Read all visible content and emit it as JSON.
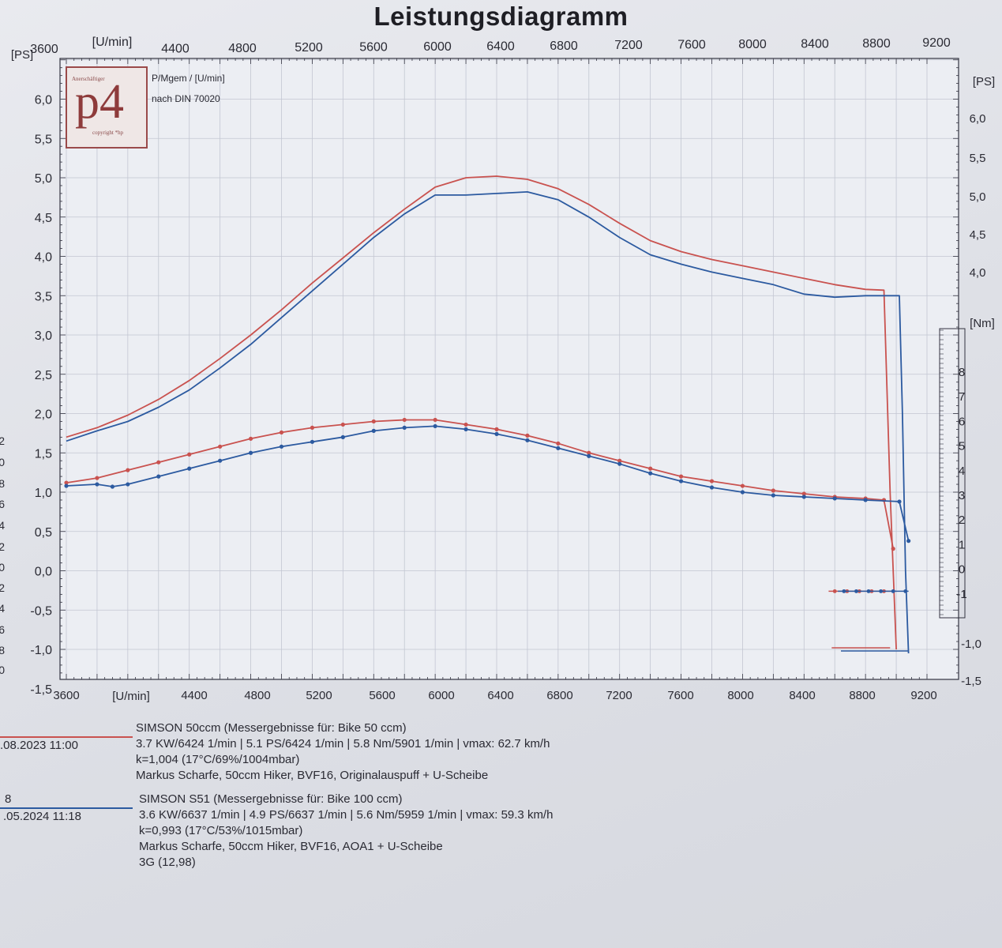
{
  "header": {
    "title": "Leistungsdiagramm"
  },
  "logo": {
    "letters": "p4",
    "top_small": "Anerschäftiger",
    "bottom_small": "copyright *hp"
  },
  "chart_note": {
    "line1": "P/Mgem / [U/min]",
    "line2": "nach DIN 70020"
  },
  "colors": {
    "run1": "#c9524f",
    "run2": "#2c5aa0",
    "grid": "#c3c6d2",
    "axis": "#333340"
  },
  "chart_data": {
    "type": "line",
    "x_unit_label": "[U/min]",
    "x_ticks": [
      "3600",
      "4400",
      "4800",
      "5200",
      "5600",
      "6000",
      "6400",
      "6800",
      "7200",
      "7600",
      "8000",
      "8400",
      "8800",
      "9200"
    ],
    "xlim": [
      3600,
      9200
    ],
    "left_axis": {
      "unit": "[PS]",
      "ticks": [
        "6,0",
        "5,5",
        "5,0",
        "4,5",
        "4,0",
        "3,5",
        "3,0",
        "2,5",
        "2,0",
        "1,5",
        "1,0",
        "0,5",
        "0,0",
        "-0,5",
        "-1,0",
        "-1,5"
      ],
      "ylim": [
        -1.5,
        6.5
      ]
    },
    "right_ps_axis": {
      "unit": "[PS]",
      "ticks": [
        "6,0",
        "5,5",
        "5,0",
        "4,5",
        "4,0"
      ]
    },
    "right_ps_axis_bottom": {
      "ticks": [
        "-1,0",
        "-1,5"
      ]
    },
    "right_nm_axis": {
      "unit": "[Nm]",
      "ticks": [
        "8",
        "7",
        "6",
        "5",
        "4",
        "3",
        "2",
        "1",
        "0",
        "-1"
      ]
    },
    "left_cut_ticks": [
      "2",
      "0",
      "8",
      "6",
      "4",
      "2",
      "0",
      ",2",
      ",4",
      ",6",
      ",8",
      ",0"
    ],
    "series": [
      {
        "name": "SIMSON 50ccm",
        "kind": "power",
        "color": "run1",
        "x": [
          3600,
          3800,
          4000,
          4200,
          4400,
          4600,
          4800,
          5000,
          5200,
          5400,
          5600,
          5800,
          6000,
          6200,
          6400,
          6600,
          6800,
          7000,
          7200,
          7400,
          7600,
          7800,
          8000,
          8200,
          8400,
          8600,
          8800,
          8920,
          8960,
          9000
        ],
        "y": [
          1.7,
          1.82,
          1.98,
          2.18,
          2.42,
          2.7,
          3.0,
          3.32,
          3.66,
          3.98,
          4.3,
          4.6,
          4.88,
          5.0,
          5.02,
          4.98,
          4.86,
          4.66,
          4.42,
          4.2,
          4.06,
          3.96,
          3.88,
          3.8,
          3.72,
          3.64,
          3.58,
          3.57,
          1.0,
          -1.0
        ]
      },
      {
        "name": "SIMSON S51",
        "kind": "power",
        "color": "run2",
        "x": [
          3600,
          3800,
          4000,
          4200,
          4400,
          4600,
          4800,
          5000,
          5200,
          5400,
          5600,
          5800,
          6000,
          6200,
          6400,
          6600,
          6800,
          7000,
          7200,
          7400,
          7600,
          7800,
          8000,
          8200,
          8400,
          8600,
          8800,
          9020,
          9040,
          9060,
          9080
        ],
        "y": [
          1.65,
          1.78,
          1.9,
          2.08,
          2.3,
          2.58,
          2.88,
          3.22,
          3.56,
          3.9,
          4.24,
          4.54,
          4.78,
          4.78,
          4.8,
          4.82,
          4.72,
          4.5,
          4.24,
          4.02,
          3.9,
          3.8,
          3.72,
          3.64,
          3.52,
          3.48,
          3.5,
          3.5,
          2.0,
          0.0,
          -1.05
        ]
      },
      {
        "name": "SIMSON 50ccm",
        "kind": "torque",
        "color": "run1",
        "x": [
          3600,
          3800,
          4000,
          4200,
          4400,
          4600,
          4800,
          5000,
          5200,
          5400,
          5600,
          5800,
          6000,
          6200,
          6400,
          6600,
          6800,
          7000,
          7200,
          7400,
          7600,
          7800,
          8000,
          8200,
          8400,
          8600,
          8800,
          8920,
          8980
        ],
        "y": [
          1.12,
          1.18,
          1.28,
          1.38,
          1.48,
          1.58,
          1.68,
          1.76,
          1.82,
          1.86,
          1.9,
          1.92,
          1.92,
          1.86,
          1.8,
          1.72,
          1.62,
          1.5,
          1.4,
          1.3,
          1.2,
          1.14,
          1.08,
          1.02,
          0.98,
          0.94,
          0.92,
          0.9,
          0.28
        ]
      },
      {
        "name": "SIMSON S51",
        "kind": "torque",
        "color": "run2",
        "x": [
          3600,
          3800,
          3900,
          4000,
          4200,
          4400,
          4600,
          4800,
          5000,
          5200,
          5400,
          5600,
          5800,
          6000,
          6200,
          6400,
          6600,
          6800,
          7000,
          7200,
          7400,
          7600,
          7800,
          8000,
          8200,
          8400,
          8600,
          8800,
          9020,
          9080
        ],
        "y": [
          1.08,
          1.1,
          1.07,
          1.1,
          1.2,
          1.3,
          1.4,
          1.5,
          1.58,
          1.64,
          1.7,
          1.78,
          1.82,
          1.84,
          1.8,
          1.74,
          1.66,
          1.56,
          1.46,
          1.36,
          1.24,
          1.14,
          1.06,
          1.0,
          0.96,
          0.94,
          0.92,
          0.9,
          0.88,
          0.38
        ]
      }
    ]
  },
  "runs": [
    {
      "date": ".08.2023  11:00",
      "number": "",
      "title": "SIMSON 50ccm (Messergebnisse für: Bike 50 ccm)",
      "values": "3.7 KW/6424 1/min  |  5.1 PS/6424 1/min  |  5.8 Nm/5901 1/min | vmax: 62.7 km/h",
      "conditions": "k=1,004 (17°C/69%/1004mbar)",
      "setup": "Markus Scharfe, 50ccm Hiker, BVF16, Originalauspuff + U-Scheibe",
      "extra": ""
    },
    {
      "date": ".05.2024  11:18",
      "number": "8",
      "title": "SIMSON S51 (Messergebnisse für: Bike 100 ccm)",
      "values": "3.6 KW/6637 1/min  |  4.9 PS/6637 1/min  |  5.6 Nm/5959 1/min | vmax: 59.3 km/h",
      "conditions": "k=0,993 (17°C/53%/1015mbar)",
      "setup": "Markus Scharfe, 50ccm Hiker, BVF16, AOA1 + U-Scheibe",
      "extra": "3G (12,98)"
    }
  ]
}
